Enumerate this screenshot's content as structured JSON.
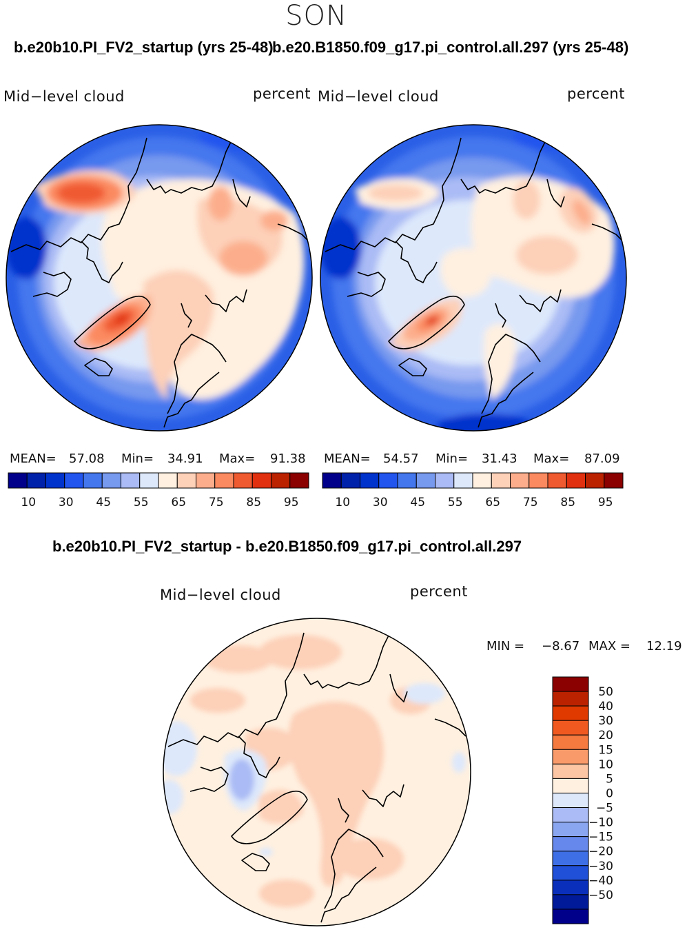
{
  "season": "SON",
  "panels": [
    {
      "case": "b.e20b10.PI_FV2_startup (yrs 25-48)",
      "variable": "Mid−level cloud",
      "units": "percent",
      "mean_label": "MEAN=",
      "mean": "57.08",
      "min_label": "Min=",
      "min": "34.91",
      "max_label": "Max=",
      "max": "91.38"
    },
    {
      "case": "b.e20.B1850.f09_g17.pi_control.all.297 (yrs 25-48)",
      "variable": "Mid−level cloud",
      "units": "percent",
      "mean_label": "MEAN=",
      "mean": "54.57",
      "min_label": "Min=",
      "min": "31.43",
      "max_label": "Max=",
      "max": "87.09"
    }
  ],
  "top_colorbar": {
    "colors": [
      "#00008b",
      "#0022aa",
      "#0033cc",
      "#2255ee",
      "#4477ee",
      "#7799ee",
      "#aabbf5",
      "#dde8fb",
      "#fff0e0",
      "#fdd0b8",
      "#fcae8c",
      "#fb8a60",
      "#f05a30",
      "#e03010",
      "#bb2200",
      "#8b0000"
    ],
    "ticks": [
      "10",
      "30",
      "45",
      "55",
      "65",
      "75",
      "85",
      "95"
    ]
  },
  "diff": {
    "title": "b.e20b10.PI_FV2_startup - b.e20.B1850.f09_g17.pi_control.all.297",
    "variable": "Mid−level cloud",
    "units": "percent",
    "min_label": "MIN =",
    "min": "−8.67",
    "max_label": "MAX =",
    "max": "12.19"
  },
  "diff_colorbar": {
    "colors": [
      "#8b0000",
      "#bb2200",
      "#e03a00",
      "#f05a20",
      "#f57a40",
      "#f99a6a",
      "#fcc6a4",
      "#fff0e0",
      "#dde8fb",
      "#aabbf5",
      "#8aa6f0",
      "#6688ec",
      "#3f6fe6",
      "#2050d8",
      "#0a2fbb",
      "#001a99",
      "#00008b"
    ],
    "ticks": [
      "50",
      "40",
      "30",
      "20",
      "15",
      "10",
      "5",
      "0",
      "−5",
      "−10",
      "−15",
      "−20",
      "−30",
      "−40",
      "−50"
    ]
  }
}
